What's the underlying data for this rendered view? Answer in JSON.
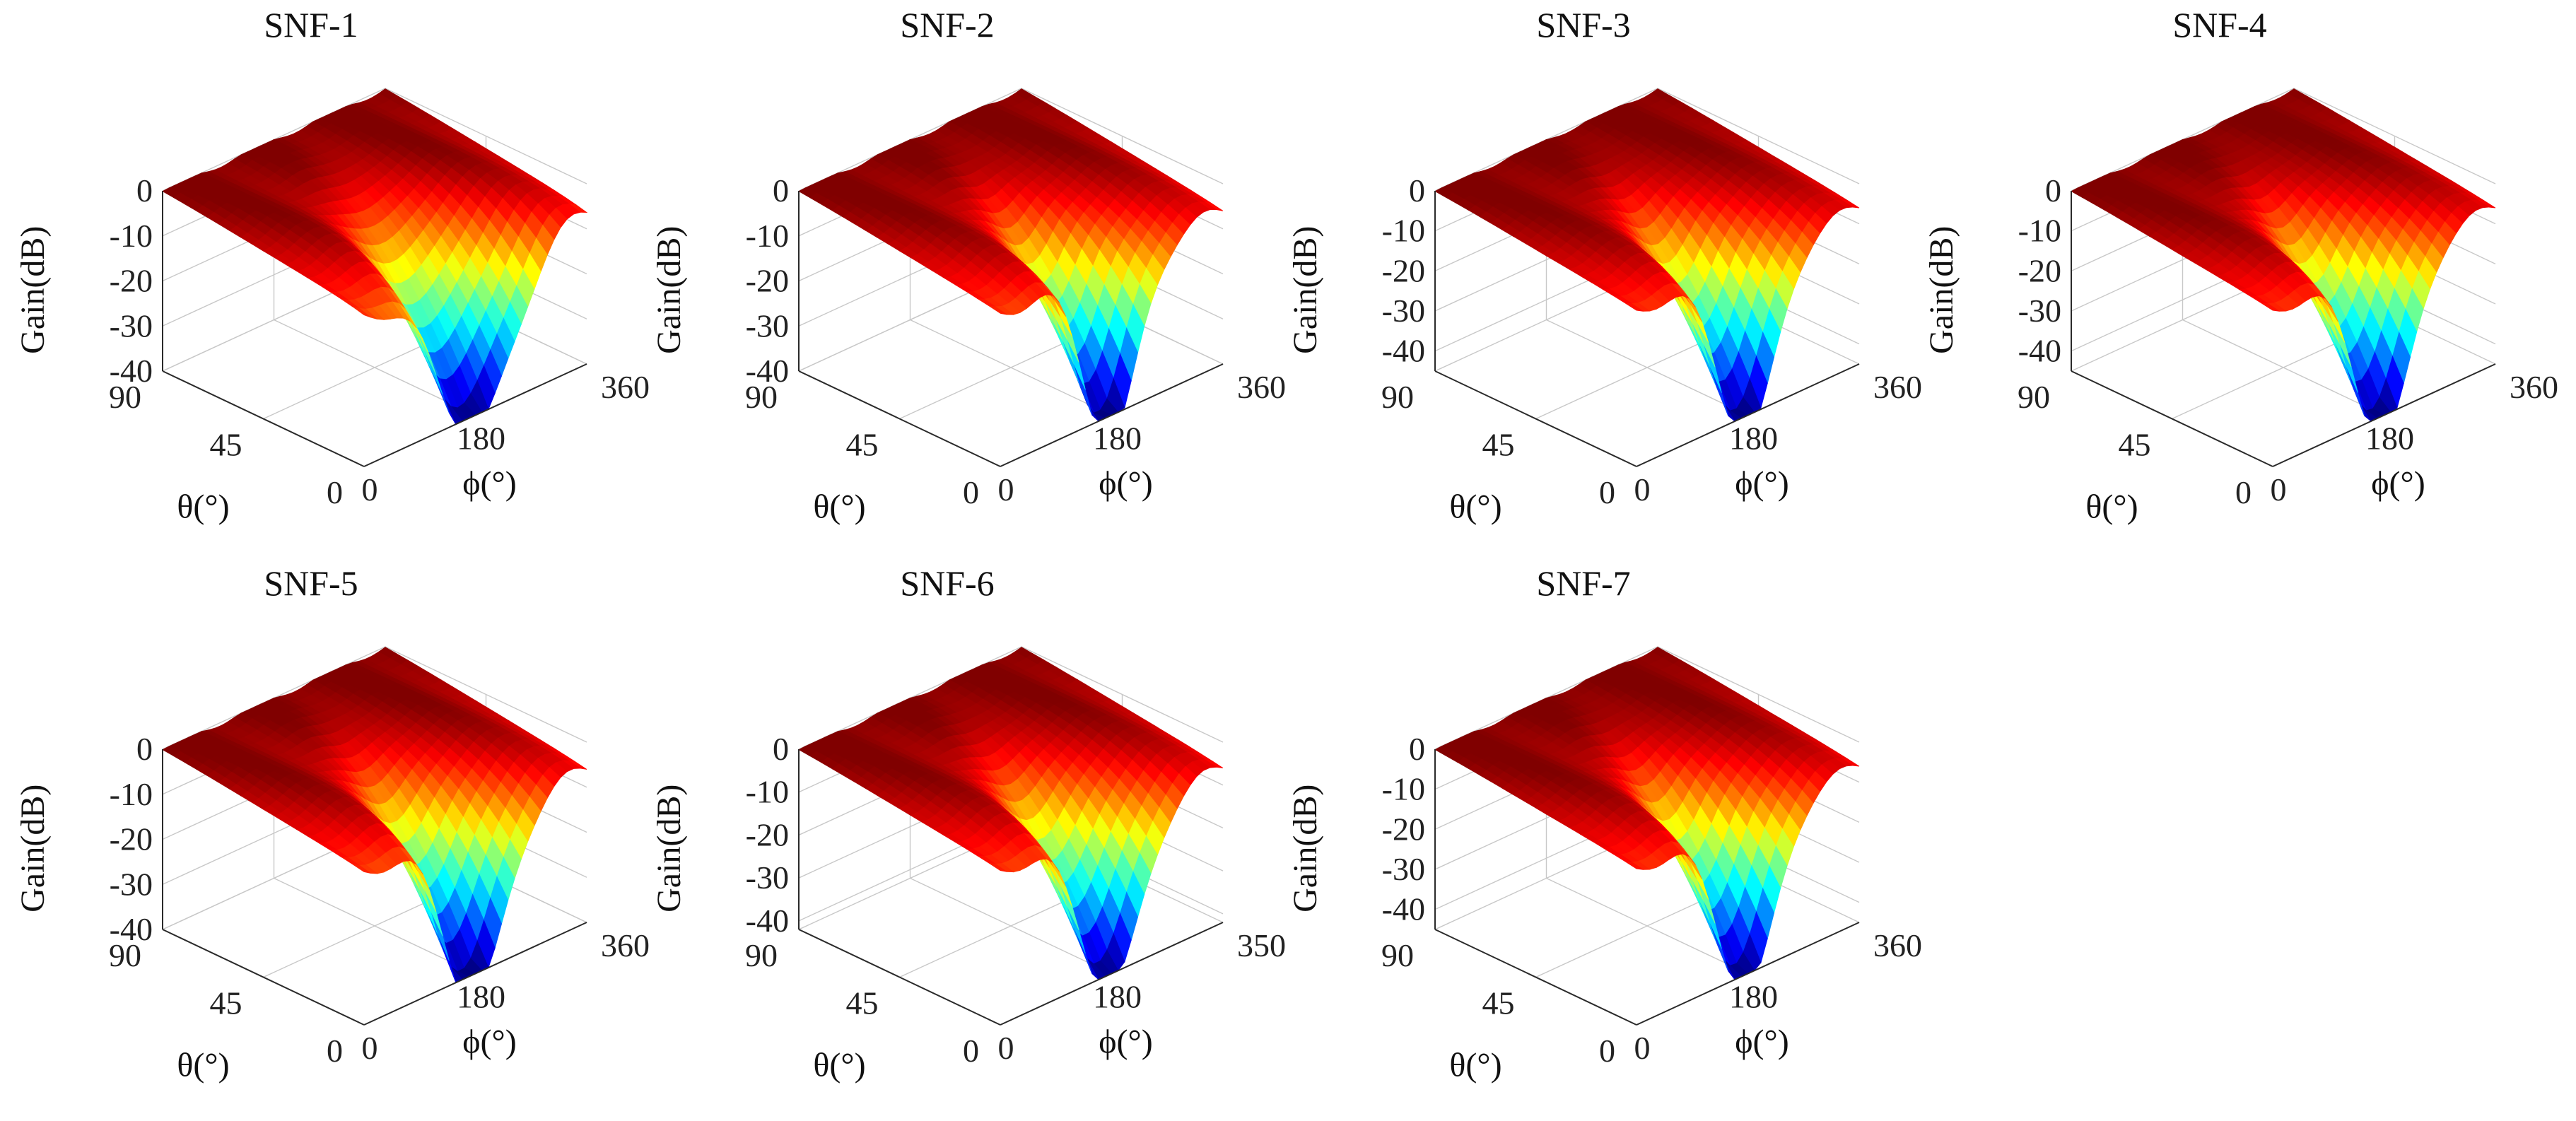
{
  "chart_data": [
    {
      "type": "surface",
      "title": "SNF-1",
      "zlabel": "Gain(dB)",
      "xlabel": "θ(°)",
      "ylabel": "ϕ(°)",
      "z_ticks": [
        "0",
        "-10",
        "-20",
        "-30",
        "-40"
      ],
      "theta_ticks": [
        "90",
        "45",
        "0"
      ],
      "phi_ticks": [
        "0",
        "180",
        "360"
      ],
      "zlim": [
        -40,
        0
      ],
      "theta_range": [
        0,
        90
      ],
      "phi_range": [
        0,
        360
      ],
      "null_depth_db": -38,
      "null_width": 0.85
    },
    {
      "type": "surface",
      "title": "SNF-2",
      "zlabel": "Gain(dB)",
      "xlabel": "θ(°)",
      "ylabel": "ϕ(°)",
      "z_ticks": [
        "0",
        "-10",
        "-20",
        "-30",
        "-40"
      ],
      "theta_ticks": [
        "90",
        "45",
        "0"
      ],
      "phi_ticks": [
        "0",
        "180",
        "360"
      ],
      "zlim": [
        -40,
        0
      ],
      "theta_range": [
        0,
        90
      ],
      "phi_range": [
        0,
        360
      ],
      "null_depth_db": -40,
      "null_width": 0.55
    },
    {
      "type": "surface",
      "title": "SNF-3",
      "zlabel": "Gain(dB)",
      "xlabel": "θ(°)",
      "ylabel": "ϕ(°)",
      "z_ticks": [
        "0",
        "-10",
        "-20",
        "-30",
        "-40"
      ],
      "theta_ticks": [
        "90",
        "45",
        "0"
      ],
      "phi_ticks": [
        "0",
        "180",
        "360"
      ],
      "zlim": [
        -45,
        0
      ],
      "theta_range": [
        0,
        90
      ],
      "phi_range": [
        0,
        360
      ],
      "null_depth_db": -45,
      "null_width": 0.6
    },
    {
      "type": "surface",
      "title": "SNF-4",
      "zlabel": "Gain(dB)",
      "xlabel": "θ(°)",
      "ylabel": "ϕ(°)",
      "z_ticks": [
        "0",
        "-10",
        "-20",
        "-30",
        "-40"
      ],
      "theta_ticks": [
        "90",
        "45",
        "0"
      ],
      "phi_ticks": [
        "0",
        "180",
        "360"
      ],
      "zlim": [
        -45,
        0
      ],
      "theta_range": [
        0,
        90
      ],
      "phi_range": [
        0,
        360
      ],
      "null_depth_db": -45,
      "null_width": 0.6
    },
    {
      "type": "surface",
      "title": "SNF-5",
      "zlabel": "Gain(dB)",
      "xlabel": "θ(°)",
      "ylabel": "ϕ(°)",
      "z_ticks": [
        "0",
        "-10",
        "-20",
        "-30",
        "-40"
      ],
      "theta_ticks": [
        "90",
        "45",
        "0"
      ],
      "phi_ticks": [
        "0",
        "180",
        "360"
      ],
      "zlim": [
        -40,
        0
      ],
      "theta_range": [
        0,
        90
      ],
      "phi_range": [
        0,
        360
      ],
      "null_depth_db": -40,
      "null_width": 0.65
    },
    {
      "type": "surface",
      "title": "SNF-6",
      "zlabel": "Gain(dB)",
      "xlabel": "θ(°)",
      "ylabel": "ϕ(°)",
      "z_ticks": [
        "0",
        "-10",
        "-20",
        "-30",
        "-40"
      ],
      "theta_ticks": [
        "90",
        "45",
        "0"
      ],
      "phi_ticks": [
        "0",
        "180",
        "350"
      ],
      "zlim": [
        -42,
        0
      ],
      "theta_range": [
        0,
        90
      ],
      "phi_range": [
        0,
        350
      ],
      "null_depth_db": -40,
      "null_width": 0.65
    },
    {
      "type": "surface",
      "title": "SNF-7",
      "zlabel": "Gain(dB)",
      "xlabel": "θ(°)",
      "ylabel": "ϕ(°)",
      "z_ticks": [
        "0",
        "-10",
        "-20",
        "-30",
        "-40"
      ],
      "theta_ticks": [
        "90",
        "45",
        "0"
      ],
      "phi_ticks": [
        "0",
        "180",
        "360"
      ],
      "zlim": [
        -45,
        0
      ],
      "theta_range": [
        0,
        90
      ],
      "phi_range": [
        0,
        360
      ],
      "null_depth_db": -44,
      "null_width": 0.6
    }
  ]
}
